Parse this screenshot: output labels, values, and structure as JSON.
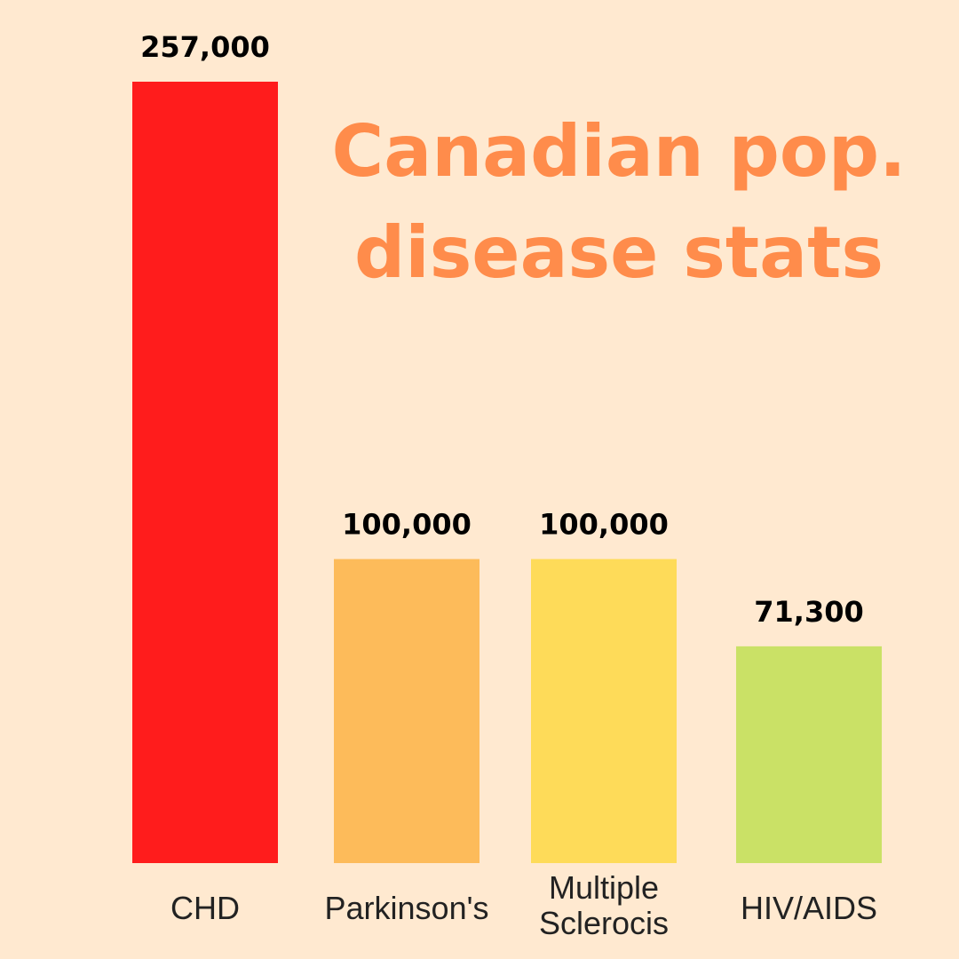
{
  "chart_data": {
    "type": "bar",
    "title": "Canadian pop. disease stats",
    "title_lines": [
      "Canadian pop.",
      "disease stats"
    ],
    "categories": [
      "CHD",
      "Parkinson's",
      "Multiple Sclerocis",
      "HIV/AIDS"
    ],
    "category_lines": [
      [
        "CHD"
      ],
      [
        "Parkinson's"
      ],
      [
        "Multiple",
        "Sclerocis"
      ],
      [
        "HIV/AIDS"
      ]
    ],
    "values": [
      257000,
      100000,
      100000,
      71300
    ],
    "value_labels": [
      "257,000",
      "100,000",
      "100,000",
      "71,300"
    ],
    "bar_colors": [
      "#FF1C1C",
      "#FDBB5A",
      "#FEDB59",
      "#CAE166"
    ],
    "ylim": [
      0,
      257000
    ],
    "xlabel": "",
    "ylabel": "",
    "grid": false,
    "legend": "none"
  },
  "colors": {
    "background": "#FFE9D0",
    "title": "#FF8C4B",
    "value_text": "#000000",
    "category_text": "#222222"
  }
}
